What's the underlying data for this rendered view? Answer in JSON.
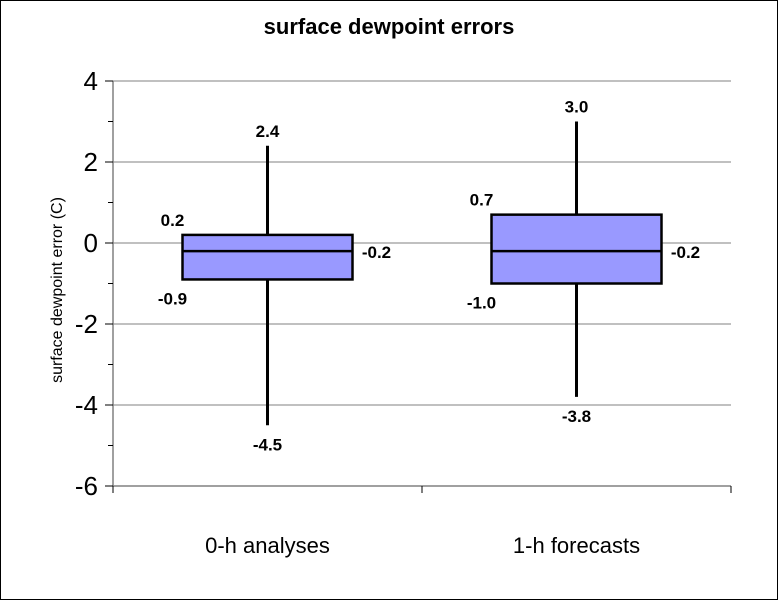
{
  "chart_data": {
    "type": "box",
    "title": "surface dewpoint errors",
    "xlabel": "",
    "ylabel": "surface dewpoint error (C)",
    "ylim": [
      -6,
      4
    ],
    "yticks": [
      4,
      2,
      0,
      -2,
      -4,
      -6
    ],
    "ytick_labels": [
      "4",
      "2",
      "0",
      "-2",
      "-4",
      "-6"
    ],
    "grid": true,
    "categories": [
      "0-h analyses",
      "1-h forecasts"
    ],
    "boxes": [
      {
        "category": "0-h analyses",
        "min": -4.5,
        "q1": -0.9,
        "median": -0.2,
        "q3": 0.2,
        "max": 2.4,
        "labels": {
          "min": "-4.5",
          "q1": "-0.9",
          "median": "-0.2",
          "q3": "0.2",
          "max": "2.4"
        }
      },
      {
        "category": "1-h forecasts",
        "min": -3.8,
        "q1": -1.0,
        "median": -0.2,
        "q3": 0.7,
        "max": 3.0,
        "labels": {
          "min": "-3.8",
          "q1": "-1.0",
          "median": "-0.2",
          "q3": "0.7",
          "max": "3.0"
        }
      }
    ],
    "box_color": "#9999ff",
    "line_color": "#000000",
    "grid_color": "#808080"
  }
}
